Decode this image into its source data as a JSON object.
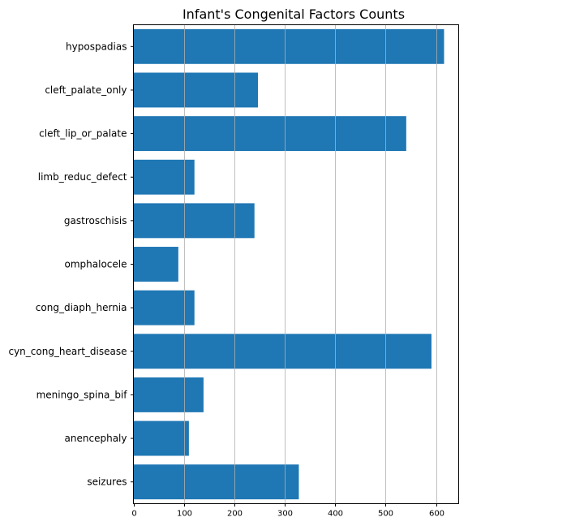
{
  "chart_data": {
    "type": "bar",
    "orientation": "horizontal",
    "title": "Infant's Congenital Factors Counts",
    "xlabel": "",
    "ylabel": "",
    "categories": [
      "hypospadias",
      "cleft_palate_only",
      "cleft_lip_or_palate",
      "limb_reduc_defect",
      "gastroschisis",
      "omphalocele",
      "cong_diaph_hernia",
      "cyn_cong_heart_disease",
      "meningo_spina_bif",
      "anencephaly",
      "seizures"
    ],
    "values": [
      616,
      247,
      541,
      121,
      240,
      89,
      121,
      591,
      139,
      110,
      328
    ],
    "xlim": [
      0,
      645
    ],
    "xticks": [
      0,
      100,
      200,
      300,
      400,
      500,
      600
    ],
    "xtick_labels": [
      "0",
      "100",
      "200",
      "300",
      "400",
      "500",
      "600"
    ],
    "grid": "vertical",
    "bar_color": "#1f77b4"
  }
}
